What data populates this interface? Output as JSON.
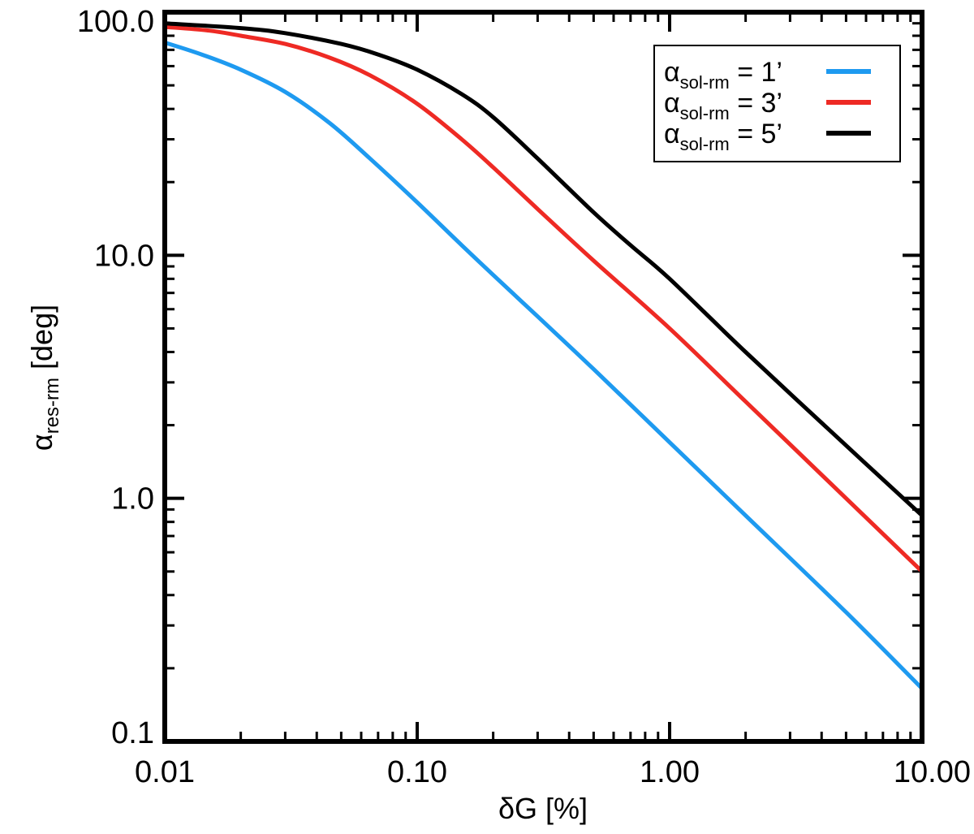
{
  "chart_data": {
    "type": "line",
    "x_scale": "log",
    "y_scale": "log",
    "xlabel": "δG [%]",
    "ylabel": {
      "main": "α",
      "sub": "res-rm",
      "suffix": " [deg]"
    },
    "xlim": [
      0.01,
      10.0
    ],
    "ylim": [
      0.1,
      100.0
    ],
    "x_ticks": [
      {
        "value": 0.01,
        "label": "0.01"
      },
      {
        "value": 0.1,
        "label": "0.10"
      },
      {
        "value": 1.0,
        "label": "1.00"
      },
      {
        "value": 10.0,
        "label": "10.00"
      }
    ],
    "y_ticks": [
      {
        "value": 0.1,
        "label": "0.1"
      },
      {
        "value": 1.0,
        "label": "1.0"
      },
      {
        "value": 10.0,
        "label": "10.0"
      },
      {
        "value": 100.0,
        "label": "100.0"
      }
    ],
    "grid": false,
    "legend_position": "top-right",
    "series": [
      {
        "name": "α_sol-rm = 1'",
        "legend": {
          "main": "α",
          "sub": "sol-rm",
          "suffix": " = 1’"
        },
        "color": "#1e9af0",
        "x": [
          0.01,
          0.014,
          0.02,
          0.03,
          0.045,
          0.065,
          0.1,
          0.15,
          0.2,
          0.3,
          0.5,
          1.0,
          2.0,
          5.0,
          10.0
        ],
        "y": [
          75,
          67,
          58,
          47,
          35,
          25,
          16.5,
          11.0,
          8.3,
          5.6,
          3.4,
          1.7,
          0.85,
          0.34,
          0.165
        ]
      },
      {
        "name": "α_sol-rm = 3'",
        "legend": {
          "main": "α",
          "sub": "sol-rm",
          "suffix": " = 3’"
        },
        "color": "#ee2a24",
        "x": [
          0.01,
          0.015,
          0.02,
          0.03,
          0.045,
          0.065,
          0.1,
          0.15,
          0.2,
          0.3,
          0.5,
          1.0,
          2.0,
          5.0,
          10.0
        ],
        "y": [
          87,
          84,
          80,
          74,
          65,
          55,
          42,
          30,
          23,
          15.5,
          9.5,
          5.0,
          2.5,
          1.0,
          0.5
        ]
      },
      {
        "name": "α_sol-rm = 5'",
        "legend": {
          "main": "α",
          "sub": "sol-rm",
          "suffix": " = 5’"
        },
        "color": "#000000",
        "x": [
          0.01,
          0.02,
          0.03,
          0.05,
          0.07,
          0.1,
          0.15,
          0.2,
          0.3,
          0.5,
          0.7,
          1.0,
          2.0,
          5.0,
          10.0
        ],
        "y": [
          90,
          86,
          82,
          74,
          67,
          58,
          46,
          37,
          25,
          15,
          11,
          8.0,
          4.0,
          1.65,
          0.85
        ]
      }
    ]
  }
}
